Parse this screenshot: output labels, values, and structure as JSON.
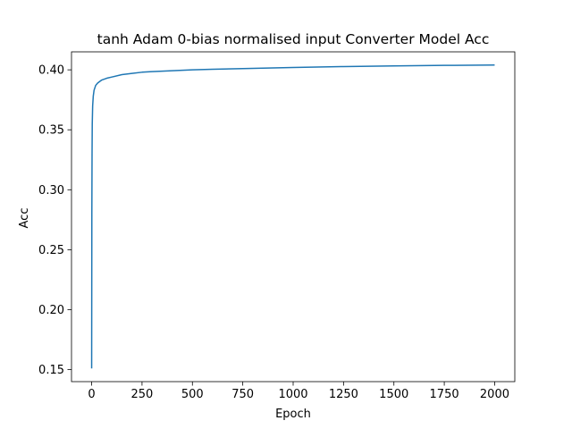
{
  "chart_data": {
    "type": "line",
    "title": "tanh Adam 0-bias normalised input Converter Model Acc",
    "xlabel": "Epoch",
    "ylabel": "Acc",
    "xlim": [
      -100,
      2100
    ],
    "ylim": [
      0.14,
      0.415
    ],
    "xticks": [
      0,
      250,
      500,
      750,
      1000,
      1250,
      1500,
      1750,
      2000
    ],
    "xtick_labels": [
      "0",
      "250",
      "500",
      "750",
      "1000",
      "1250",
      "1500",
      "1750",
      "2000"
    ],
    "yticks": [
      0.15,
      0.2,
      0.25,
      0.3,
      0.35,
      0.4
    ],
    "ytick_labels": [
      "0.15",
      "0.20",
      "0.25",
      "0.30",
      "0.35",
      "0.40"
    ],
    "grid": false,
    "series": [
      {
        "color": "#1f77b4",
        "x": [
          0,
          1,
          2,
          3,
          5,
          8,
          12,
          20,
          30,
          50,
          75,
          100,
          150,
          200,
          250,
          300,
          400,
          500,
          600,
          750,
          1000,
          1250,
          1500,
          1750,
          2000
        ],
        "y": [
          0.151,
          0.28,
          0.33,
          0.355,
          0.37,
          0.378,
          0.383,
          0.387,
          0.389,
          0.3915,
          0.393,
          0.394,
          0.396,
          0.397,
          0.398,
          0.3985,
          0.3993,
          0.4,
          0.4005,
          0.401,
          0.402,
          0.4027,
          0.4033,
          0.4037,
          0.404
        ]
      }
    ]
  }
}
